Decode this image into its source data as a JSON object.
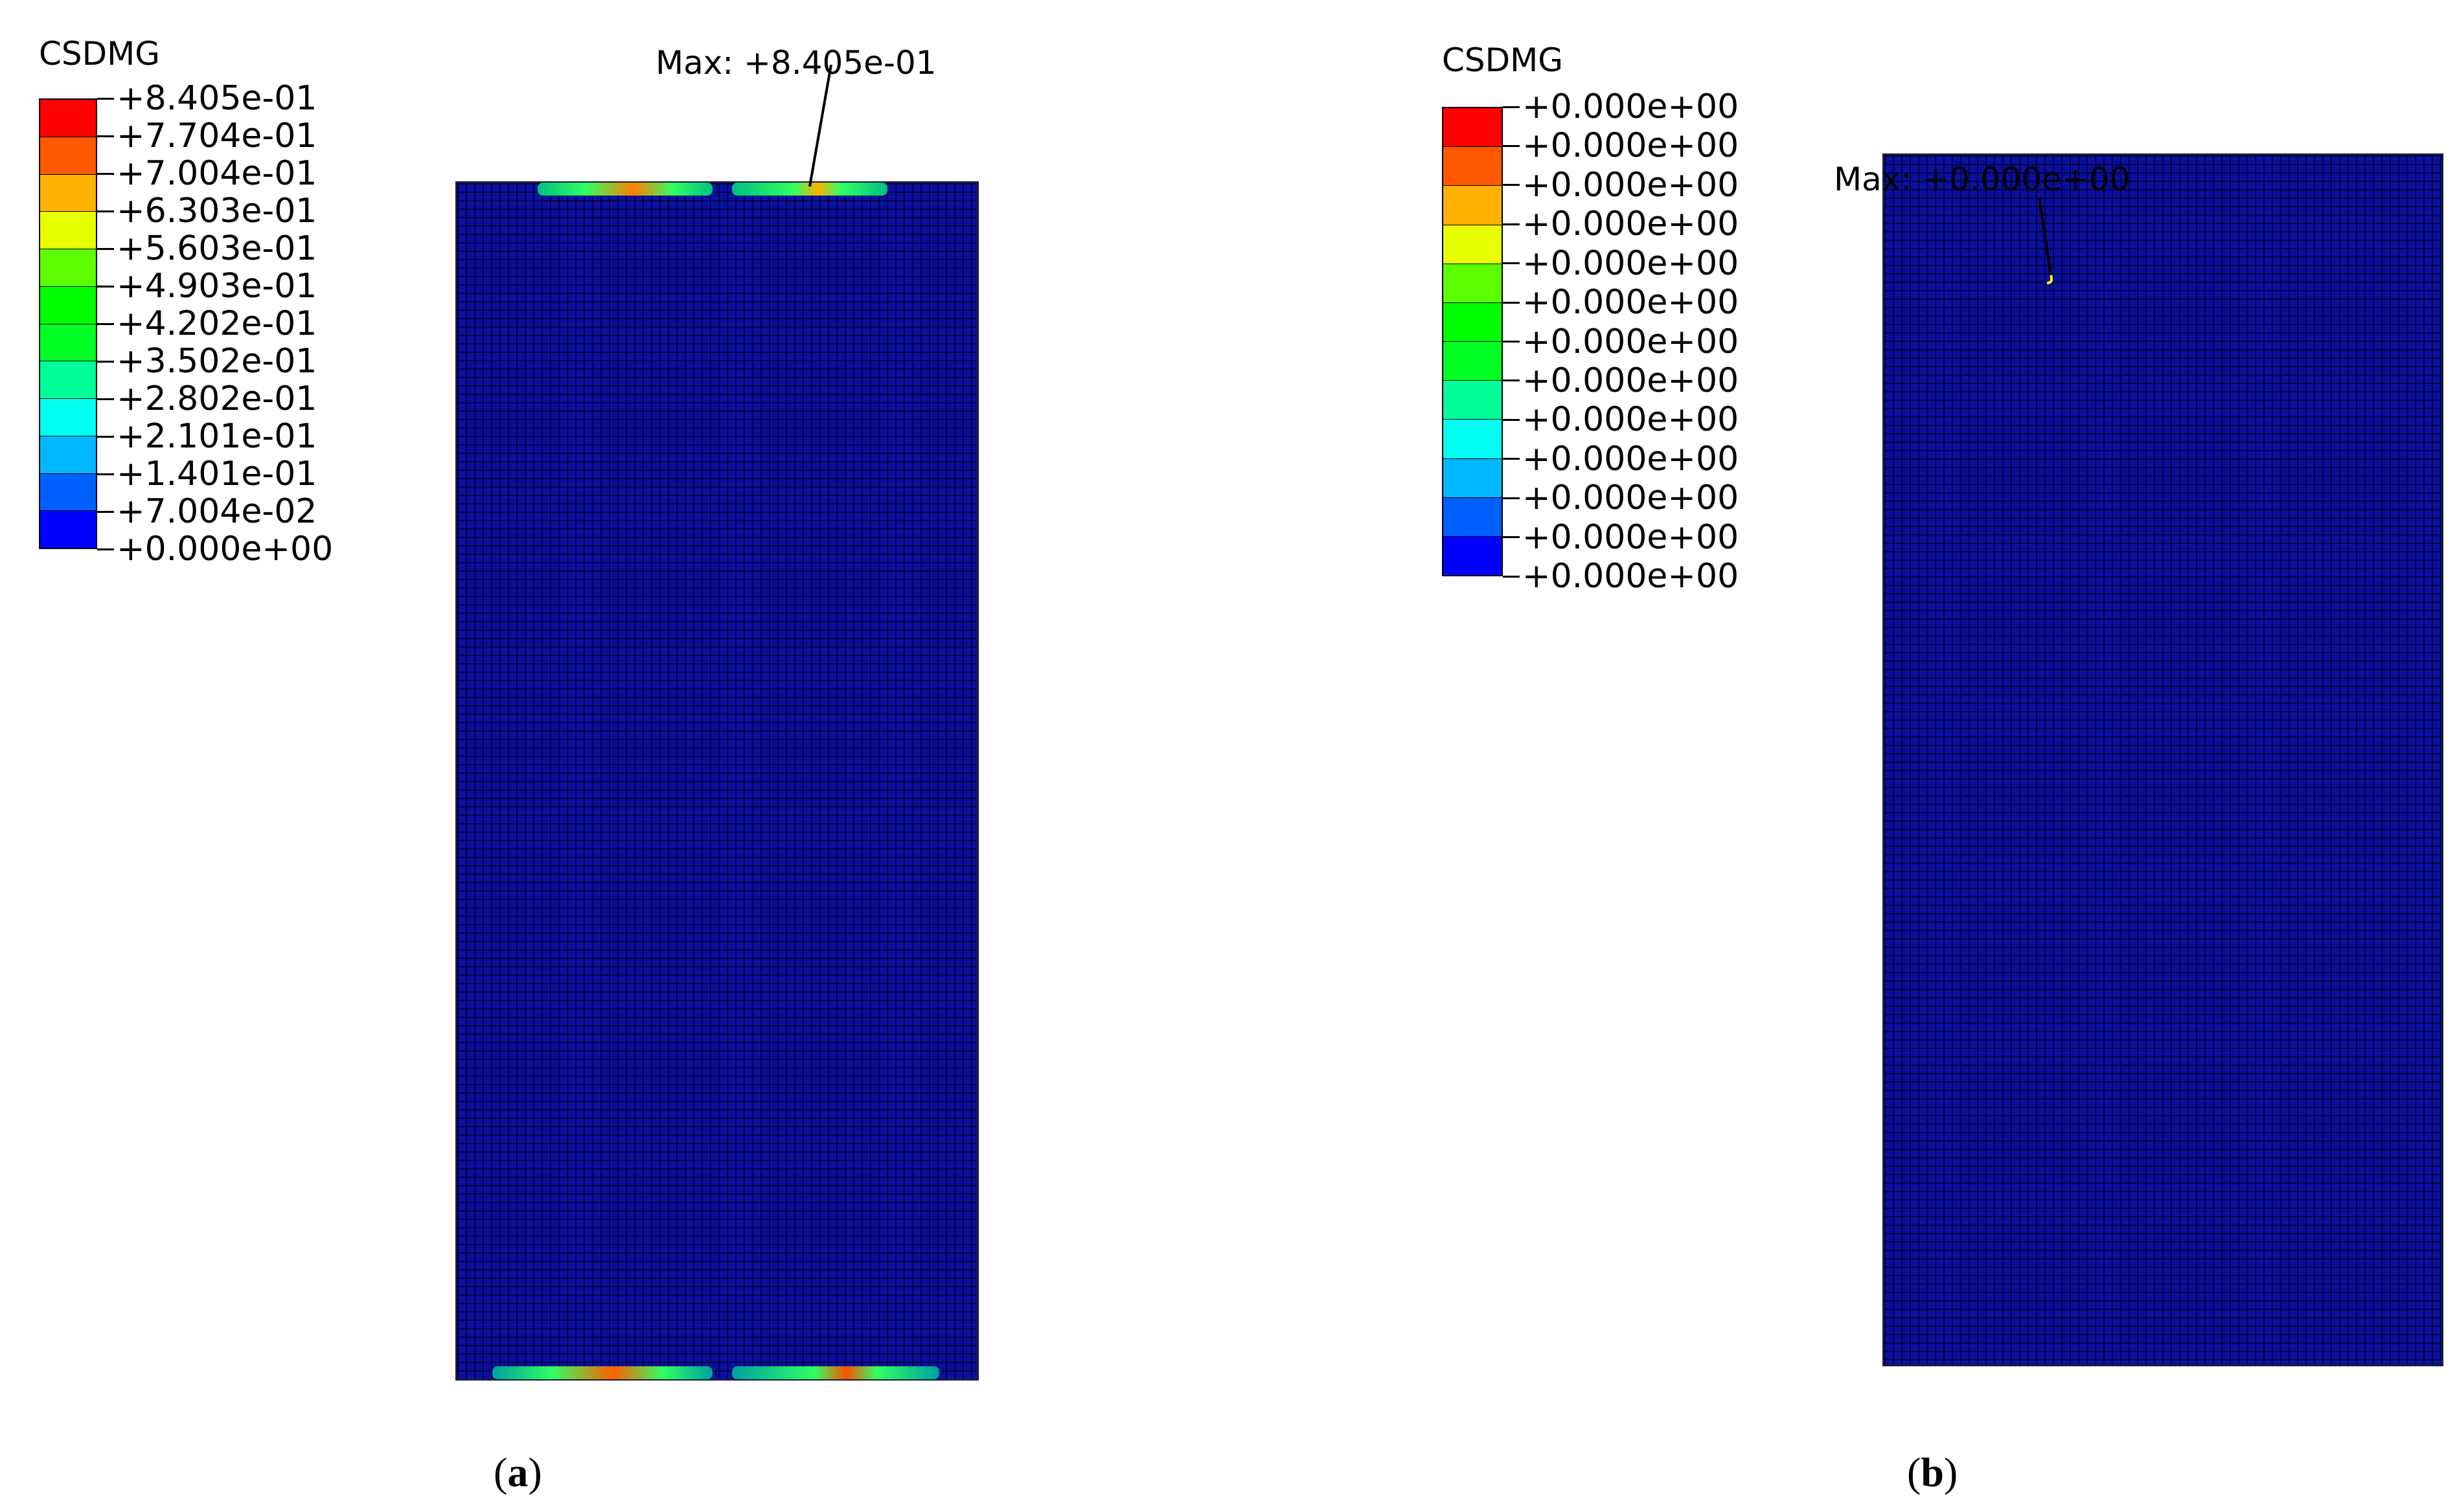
{
  "panel_a": {
    "legend": {
      "title": "CSDMG",
      "colors": [
        "#ff0000",
        "#ff5a00",
        "#ffb300",
        "#e8ff00",
        "#5dff00",
        "#00ff00",
        "#00ff23",
        "#00ff9a",
        "#00fff2",
        "#00b8ff",
        "#0060ff",
        "#0000ff"
      ],
      "labels": [
        "+8.405e-01",
        "+7.704e-01",
        "+7.004e-01",
        "+6.303e-01",
        "+5.603e-01",
        "+4.903e-01",
        "+4.202e-01",
        "+3.502e-01",
        "+2.802e-01",
        "+2.101e-01",
        "+1.401e-01",
        "+7.004e-02",
        "+0.000e+00"
      ]
    },
    "max_label": "Max: +8.405e-01",
    "max_value": 0.8405,
    "caption_letter": "a"
  },
  "panel_b": {
    "legend": {
      "title": "CSDMG",
      "colors": [
        "#ff0000",
        "#ff5a00",
        "#ffb300",
        "#e8ff00",
        "#5dff00",
        "#00ff00",
        "#00ff23",
        "#00ff9a",
        "#00fff2",
        "#00b8ff",
        "#0060ff",
        "#0000ff"
      ],
      "labels": [
        "+0.000e+00",
        "+0.000e+00",
        "+0.000e+00",
        "+0.000e+00",
        "+0.000e+00",
        "+0.000e+00",
        "+0.000e+00",
        "+0.000e+00",
        "+0.000e+00",
        "+0.000e+00",
        "+0.000e+00",
        "+0.000e+00",
        "+0.000e+00"
      ]
    },
    "max_label": "Max: +0.000e+00",
    "max_value": 0.0,
    "caption_letter": "b"
  },
  "caption_open": "(",
  "caption_close": ")"
}
